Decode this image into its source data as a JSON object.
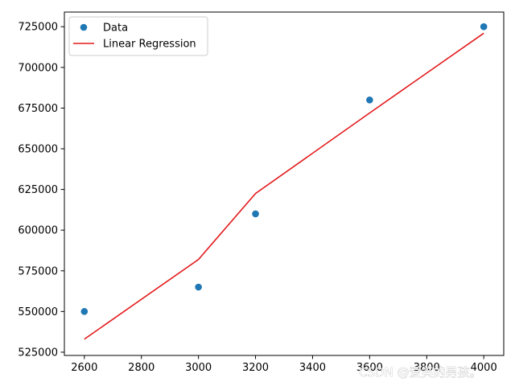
{
  "chart_data": {
    "type": "scatter",
    "title": "",
    "xlabel": "",
    "ylabel": "",
    "xlim": [
      2530,
      4070
    ],
    "ylim": [
      523000,
      734000
    ],
    "xticks": [
      2600,
      2800,
      3000,
      3200,
      3400,
      3600,
      3800,
      4000
    ],
    "yticks": [
      525000,
      550000,
      575000,
      600000,
      625000,
      650000,
      675000,
      700000,
      725000
    ],
    "xtick_labels": [
      "2600",
      "2800",
      "3000",
      "3200",
      "3400",
      "3600",
      "3800",
      "4000"
    ],
    "ytick_labels": [
      "525000",
      "550000",
      "575000",
      "600000",
      "625000",
      "650000",
      "675000",
      "700000",
      "725000"
    ],
    "grid": false,
    "legend_position": "top-left",
    "series": [
      {
        "name": "Data",
        "kind": "scatter",
        "color": "#1f77b4",
        "x": [
          2600,
          3000,
          3200,
          3600,
          4000
        ],
        "y": [
          550000,
          565000,
          610000,
          680000,
          725000
        ]
      },
      {
        "name": "Linear Regression",
        "kind": "line",
        "color": "#e31a1c",
        "x": [
          2600,
          3000,
          3200,
          3600,
          4000
        ],
        "y": [
          533000,
          582000,
          622500,
          672000,
          721000
        ]
      }
    ]
  },
  "watermark": "CSDN @爱笑的男孩。"
}
